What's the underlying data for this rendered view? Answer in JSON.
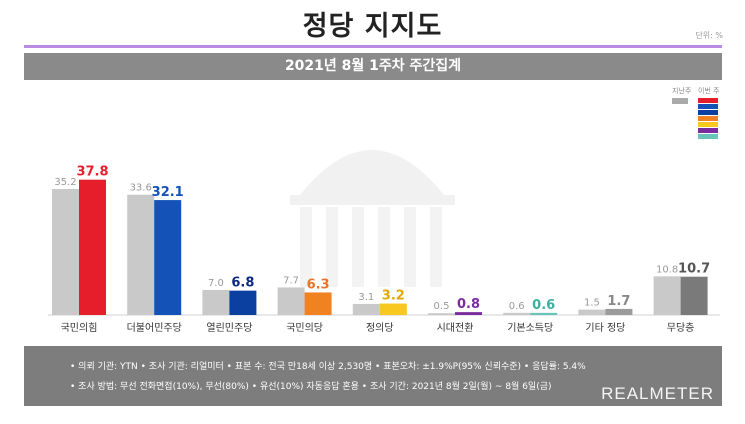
{
  "header": {
    "title": "정당 지지도",
    "unit": "단위: %"
  },
  "banner": {
    "text": "2021년 8월 1주차 주간집계"
  },
  "legend": {
    "prev_label": "지난주",
    "curr_label": "이번 주"
  },
  "chart_data": {
    "type": "bar",
    "categories": [
      "국민의힘",
      "더불어민주당",
      "열린민주당",
      "국민의당",
      "정의당",
      "시대전환",
      "기본소득당",
      "기타 정당",
      "무당층"
    ],
    "series": [
      {
        "name": "지난주",
        "values": [
          35.2,
          33.6,
          7.0,
          7.7,
          3.1,
          0.5,
          0.6,
          1.5,
          10.8
        ]
      },
      {
        "name": "이번 주",
        "values": [
          37.8,
          32.1,
          6.8,
          6.3,
          3.2,
          0.8,
          0.6,
          1.7,
          10.7
        ]
      }
    ],
    "colors": {
      "prev": "#c9c9c9",
      "current": [
        "#e61e2b",
        "#1452b8",
        "#0b3fa0",
        "#f08222",
        "#f8c81e",
        "#7b2ba0",
        "#68c4b8",
        "#9b9b9b",
        "#7a7a7a"
      ],
      "value_labels": [
        "#e61e2b",
        "#1452b8",
        "#0b2a80",
        "#e5752a",
        "#e3a800",
        "#7b2ba0",
        "#3bb0a0",
        "#888888",
        "#555555"
      ]
    },
    "ylim": [
      0,
      40
    ]
  },
  "footer": {
    "line1": "• 의뢰 기관: YTN • 조사 기관: 리얼미터 • 표본 수: 전국 만18세 이상 2,530명 • 표본오차: ±1.9%P(95% 신뢰수준) • 응답률: 5.4%",
    "line2": "• 조사 방법: 무선 전화면접(10%), 무선(80%) • 유선(10%) 자동응답 혼용 • 조사 기간: 2021년 8월 2일(월) ~ 8월 6일(금)",
    "logo": "REALMETER"
  }
}
